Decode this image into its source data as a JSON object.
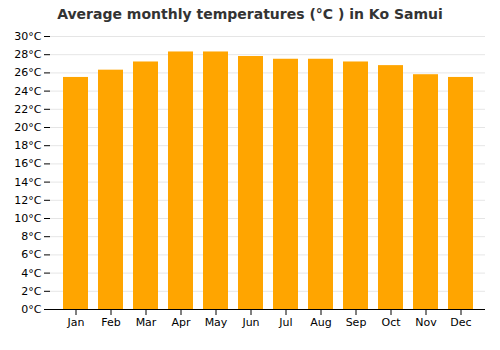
{
  "chart_data": {
    "type": "bar",
    "title": "Average monthly temperatures (°C ) in Ko Samui",
    "categories": [
      "Jan",
      "Feb",
      "Mar",
      "Apr",
      "May",
      "Jun",
      "Jul",
      "Aug",
      "Sep",
      "Oct",
      "Nov",
      "Dec"
    ],
    "values": [
      25.5,
      26.3,
      27.2,
      28.3,
      28.3,
      27.8,
      27.5,
      27.5,
      27.2,
      26.8,
      25.8,
      25.5
    ],
    "color": "#FFA500",
    "ylim": [
      0,
      30
    ],
    "yticks": [
      {
        "value": 0,
        "label": "0°C"
      },
      {
        "value": 2,
        "label": "2°C"
      },
      {
        "value": 4,
        "label": "4°C"
      },
      {
        "value": 6,
        "label": "6°C"
      },
      {
        "value": 8,
        "label": "8°C"
      },
      {
        "value": 10,
        "label": "10°C"
      },
      {
        "value": 12,
        "label": "12°C"
      },
      {
        "value": 14,
        "label": "14°C"
      },
      {
        "value": 16,
        "label": "16°C"
      },
      {
        "value": 18,
        "label": "18°C"
      },
      {
        "value": 20,
        "label": "20°C"
      },
      {
        "value": 22,
        "label": "22°C"
      },
      {
        "value": 24,
        "label": "24°C"
      },
      {
        "value": 26,
        "label": "26°C"
      },
      {
        "value": 28,
        "label": "28°C"
      },
      {
        "value": 30,
        "label": "30°C"
      }
    ],
    "grid": true
  }
}
